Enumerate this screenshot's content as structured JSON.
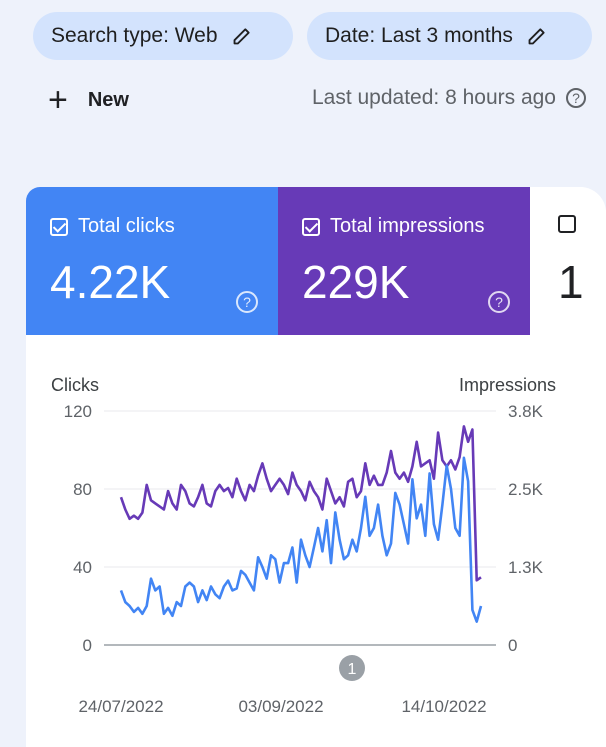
{
  "filters": {
    "search_type": "Search type: Web",
    "date": "Date: Last 3 months"
  },
  "toolbar": {
    "new_label": "New",
    "last_updated": "Last updated: 8 hours ago"
  },
  "metrics": [
    {
      "label": "Total clicks",
      "value": "4.22K",
      "checked": true,
      "color": "#4285f4"
    },
    {
      "label": "Total impressions",
      "value": "229K",
      "checked": true,
      "color": "#673ab7"
    },
    {
      "label": "",
      "value": "1",
      "checked": false,
      "color": "#ffffff"
    }
  ],
  "chart_data": {
    "type": "line",
    "left_axis": {
      "title": "Clicks",
      "ticks": [
        "0",
        "40",
        "80",
        "120"
      ],
      "range": [
        0,
        120
      ]
    },
    "right_axis": {
      "title": "Impressions",
      "ticks": [
        "0",
        "1.3K",
        "2.5K",
        "3.8K"
      ],
      "range": [
        0,
        3800
      ]
    },
    "x_ticks": [
      "24/07/2022",
      "03/09/2022",
      "14/10/2022"
    ],
    "annotation": "1",
    "grid": true,
    "series": [
      {
        "name": "Total clicks",
        "axis": "left",
        "color": "#4285f4",
        "values": [
          28,
          22,
          20,
          17,
          19,
          16,
          20,
          34,
          28,
          30,
          16,
          19,
          15,
          22,
          20,
          30,
          32,
          30,
          22,
          28,
          23,
          30,
          26,
          24,
          30,
          33,
          28,
          29,
          38,
          36,
          32,
          28,
          45,
          40,
          34,
          46,
          44,
          32,
          42,
          42,
          50,
          32,
          54,
          46,
          40,
          50,
          60,
          48,
          64,
          42,
          68,
          54,
          44,
          46,
          54,
          48,
          60,
          76,
          56,
          60,
          72,
          56,
          46,
          52,
          78,
          72,
          62,
          52,
          85,
          65,
          72,
          56,
          88,
          62,
          54,
          72,
          92,
          80,
          60,
          56,
          96,
          84,
          18,
          12,
          20
        ]
      },
      {
        "name": "Total impressions",
        "axis": "right",
        "color": "#673ab7",
        "values": [
          2400,
          2200,
          2050,
          2100,
          2050,
          2150,
          2600,
          2350,
          2300,
          2250,
          2200,
          2500,
          2300,
          2200,
          2600,
          2500,
          2300,
          2250,
          2400,
          2600,
          2300,
          2250,
          2500,
          2600,
          2500,
          2550,
          2400,
          2700,
          2500,
          2350,
          2600,
          2500,
          2750,
          2950,
          2700,
          2500,
          2600,
          2700,
          2600,
          2450,
          2800,
          2600,
          2500,
          2350,
          2650,
          2500,
          2400,
          2200,
          2700,
          2500,
          2300,
          2400,
          2250,
          2650,
          2700,
          2400,
          2500,
          2950,
          2600,
          2750,
          2600,
          2600,
          2800,
          3150,
          2800,
          2700,
          2800,
          2650,
          2900,
          3300,
          2900,
          2950,
          3000,
          2700,
          3450,
          3000,
          2900,
          3000,
          2850,
          3050,
          3550,
          3300,
          3500,
          1050,
          1100
        ]
      }
    ]
  }
}
